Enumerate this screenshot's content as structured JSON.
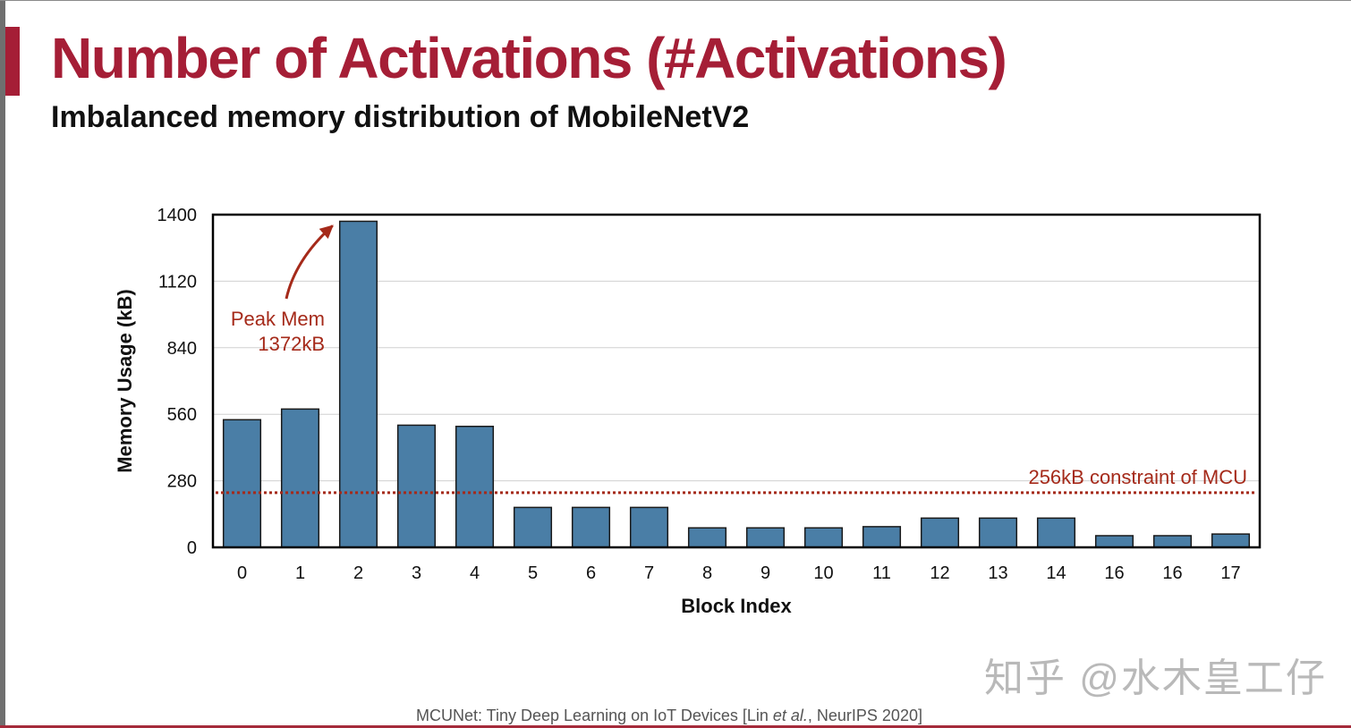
{
  "slide": {
    "title": "Number of Activations (#Activations)",
    "subtitle": "Imbalanced memory distribution of MobileNetV2"
  },
  "chart_data": {
    "type": "bar",
    "categories": [
      "0",
      "1",
      "2",
      "3",
      "4",
      "5",
      "6",
      "7",
      "8",
      "9",
      "10",
      "11",
      "12",
      "13",
      "14",
      "16",
      "16",
      "17"
    ],
    "values": [
      537,
      582,
      1372,
      514,
      509,
      168,
      168,
      168,
      82,
      82,
      82,
      87,
      123,
      123,
      123,
      49,
      49,
      56
    ],
    "xlabel": "Block Index",
    "ylabel": "Memory Usage (kB)",
    "ylim": [
      0,
      1400
    ],
    "yticks": [
      0,
      280,
      560,
      840,
      1120,
      1400
    ],
    "grid": "horizontal",
    "bar_color": "#4a7ea6",
    "annotations": [
      {
        "text_line1": "Peak Mem",
        "text_line2": "1372kB",
        "target_category_index": 2,
        "color": "#a52a1a"
      }
    ],
    "reference_lines": [
      {
        "y": 230,
        "label": "256kB constraint of MCU",
        "color": "#a52a1a",
        "style": "dotted"
      }
    ]
  },
  "watermark": "知乎 @水木皇工仔",
  "citation": {
    "prefix": "MCUNet: Tiny Deep Learning on IoT Devices [Lin ",
    "italic": "et al.",
    "suffix": ", NeurIPS 2020]"
  }
}
